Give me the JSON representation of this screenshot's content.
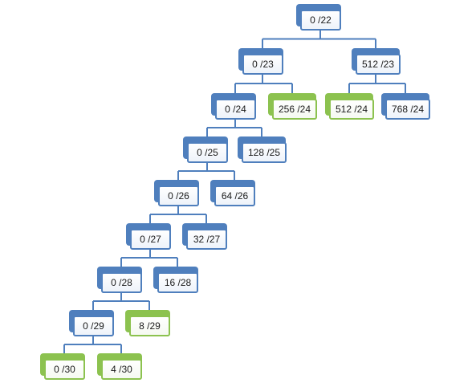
{
  "nodes": [
    {
      "id": "n22",
      "label": "0 /22",
      "color": "blue"
    },
    {
      "id": "n23a",
      "label": "0 /23",
      "color": "blue"
    },
    {
      "id": "n23b",
      "label": "512 /23",
      "color": "blue"
    },
    {
      "id": "n24a",
      "label": "0 /24",
      "color": "blue"
    },
    {
      "id": "n24b",
      "label": "256 /24",
      "color": "green"
    },
    {
      "id": "n24c",
      "label": "512 /24",
      "color": "green"
    },
    {
      "id": "n24d",
      "label": "768 /24",
      "color": "blue"
    },
    {
      "id": "n25a",
      "label": "0 /25",
      "color": "blue"
    },
    {
      "id": "n25b",
      "label": "128 /25",
      "color": "blue"
    },
    {
      "id": "n26a",
      "label": "0 /26",
      "color": "blue"
    },
    {
      "id": "n26b",
      "label": "64 /26",
      "color": "blue"
    },
    {
      "id": "n27a",
      "label": "0 /27",
      "color": "blue"
    },
    {
      "id": "n27b",
      "label": "32 /27",
      "color": "blue"
    },
    {
      "id": "n28a",
      "label": "0 /28",
      "color": "blue"
    },
    {
      "id": "n28b",
      "label": "16 /28",
      "color": "blue"
    },
    {
      "id": "n29a",
      "label": "0 /29",
      "color": "blue"
    },
    {
      "id": "n29b",
      "label": "8 /29",
      "color": "green"
    },
    {
      "id": "n30a",
      "label": "0 /30",
      "color": "green"
    },
    {
      "id": "n30b",
      "label": "4 /30",
      "color": "green"
    }
  ],
  "edges": [
    [
      "n22",
      "n23a"
    ],
    [
      "n22",
      "n23b"
    ],
    [
      "n23a",
      "n24a"
    ],
    [
      "n23a",
      "n24b"
    ],
    [
      "n23b",
      "n24c"
    ],
    [
      "n23b",
      "n24d"
    ],
    [
      "n24a",
      "n25a"
    ],
    [
      "n24a",
      "n25b"
    ],
    [
      "n25a",
      "n26a"
    ],
    [
      "n25a",
      "n26b"
    ],
    [
      "n26a",
      "n27a"
    ],
    [
      "n26a",
      "n27b"
    ],
    [
      "n27a",
      "n28a"
    ],
    [
      "n27a",
      "n28b"
    ],
    [
      "n28a",
      "n29a"
    ],
    [
      "n28a",
      "n29b"
    ],
    [
      "n29a",
      "n30a"
    ],
    [
      "n29a",
      "n30b"
    ]
  ],
  "colors": {
    "blue": "#4f7fbd",
    "green": "#8cc24f",
    "connector": "#4f7fbd"
  }
}
